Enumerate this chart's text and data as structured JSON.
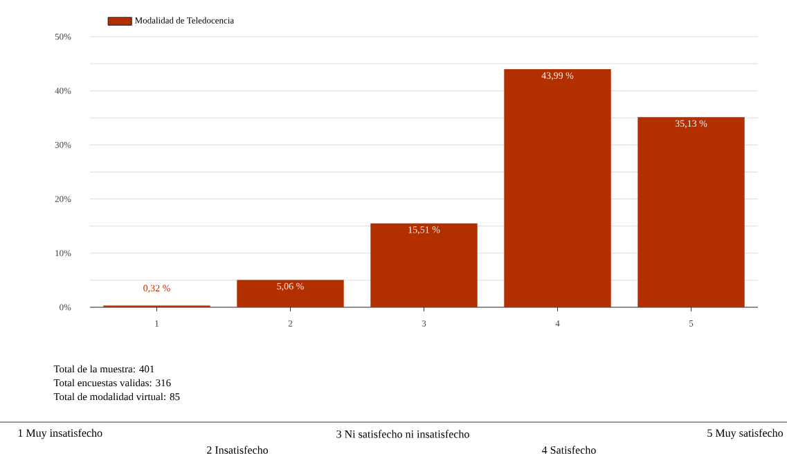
{
  "chart_data": {
    "type": "bar",
    "categories": [
      "1",
      "2",
      "3",
      "4",
      "5"
    ],
    "series": [
      {
        "name": "Modalidad de Teledocencia",
        "color": "#b22f00",
        "values": [
          0.32,
          5.06,
          15.51,
          43.99,
          35.13
        ]
      }
    ],
    "value_labels": [
      "0,32 %",
      "5,06 %",
      "15,51 %",
      "43,99 %",
      "35,13 %"
    ],
    "ylim": [
      0,
      50
    ],
    "yticks": [
      {
        "value": 0,
        "label": "0%"
      },
      {
        "value": 5,
        "label": null
      },
      {
        "value": 10,
        "label": "10%"
      },
      {
        "value": 15,
        "label": null
      },
      {
        "value": 20,
        "label": "20%"
      },
      {
        "value": 25,
        "label": null
      },
      {
        "value": 30,
        "label": "30%"
      },
      {
        "value": 35,
        "label": null
      },
      {
        "value": 40,
        "label": "40%"
      },
      {
        "value": 45,
        "label": null
      },
      {
        "value": 50,
        "label": "50%"
      }
    ],
    "grid": "y",
    "legend": "top left",
    "annotations": [
      "Total de la muestra: 401",
      "Total encuestas validas: 316",
      "Total de modalidad virtual: 85",
      "1 Muy insatisfecho",
      "2 Insatisfecho",
      "3 Ni satisfecho ni insatisfecho",
      "4 Satisfecho",
      "5 Muy satisfecho"
    ]
  }
}
